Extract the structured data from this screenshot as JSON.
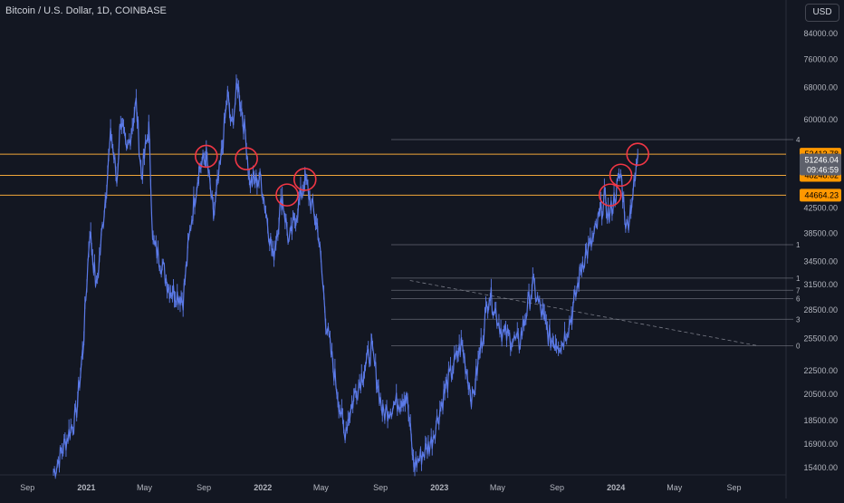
{
  "header": {
    "title": "Bitcoin / U.S. Dollar, 1D, COINBASE",
    "currency": "USD"
  },
  "colors": {
    "background": "#131722",
    "candle": "#5b7ae8",
    "hline": "#f0a63a",
    "circle": "#f23645",
    "grid": "#787b86",
    "label_orange": "#ff9800",
    "label_gray": "#5d606b",
    "axis_text": "#b2b5be"
  },
  "chart_data": {
    "type": "line",
    "title": "Bitcoin / U.S. Dollar, 1D, COINBASE",
    "xlabel": "",
    "ylabel": "",
    "scale": "log",
    "ylim": [
      15000,
      90000
    ],
    "xlim": [
      "2020-08-20",
      "2024-10-25"
    ],
    "x_ticks": [
      "Sep",
      "2021",
      "May",
      "Sep",
      "2022",
      "May",
      "Sep",
      "2023",
      "May",
      "Sep",
      "2024",
      "May",
      "Sep"
    ],
    "y_ticks": [
      "84000.00",
      "76000.00",
      "68000.00",
      "60000.00",
      "52413.78",
      "51246.04",
      "48248.62",
      "44664.23",
      "42500.00",
      "38500.00",
      "34500.00",
      "31500.00",
      "28500.00",
      "25500.00",
      "22500.00",
      "20500.00",
      "18500.00",
      "16900.00",
      "15400.00"
    ],
    "series": [
      {
        "type": "price",
        "points": [
          [
            "2020-10-25",
            15100
          ],
          [
            "2020-11-10",
            16300
          ],
          [
            "2020-11-28",
            17800
          ],
          [
            "2020-12-10",
            18700
          ],
          [
            "2020-12-25",
            24500
          ],
          [
            "2021-01-08",
            39000
          ],
          [
            "2021-01-22",
            31000
          ],
          [
            "2021-02-10",
            45000
          ],
          [
            "2021-02-21",
            57000
          ],
          [
            "2021-03-05",
            47000
          ],
          [
            "2021-03-13",
            61000
          ],
          [
            "2021-03-25",
            52000
          ],
          [
            "2021-04-14",
            64000
          ],
          [
            "2021-04-25",
            48000
          ],
          [
            "2021-05-10",
            58000
          ],
          [
            "2021-05-19",
            37000
          ],
          [
            "2021-06-01",
            35000
          ],
          [
            "2021-06-22",
            31000
          ],
          [
            "2021-07-20",
            29800
          ],
          [
            "2021-08-05",
            40000
          ],
          [
            "2021-08-22",
            49500
          ],
          [
            "2021-09-06",
            52000
          ],
          [
            "2021-09-21",
            41000
          ],
          [
            "2021-10-05",
            50000
          ],
          [
            "2021-10-20",
            66000
          ],
          [
            "2021-10-28",
            58000
          ],
          [
            "2021-11-10",
            68900
          ],
          [
            "2021-11-28",
            55000
          ],
          [
            "2021-12-04",
            47000
          ],
          [
            "2021-12-28",
            47500
          ],
          [
            "2022-01-22",
            35000
          ],
          [
            "2022-02-10",
            44500
          ],
          [
            "2022-02-24",
            37000
          ],
          [
            "2022-03-29",
            47500
          ],
          [
            "2022-04-25",
            39000
          ],
          [
            "2022-05-12",
            27000
          ],
          [
            "2022-06-18",
            17600
          ],
          [
            "2022-07-10",
            20500
          ],
          [
            "2022-08-14",
            24500
          ],
          [
            "2022-09-06",
            19000
          ],
          [
            "2022-10-25",
            20500
          ],
          [
            "2022-11-09",
            15500
          ],
          [
            "2022-12-15",
            17000
          ],
          [
            "2023-01-14",
            21000
          ],
          [
            "2023-02-16",
            25000
          ],
          [
            "2023-03-10",
            20000
          ],
          [
            "2023-04-14",
            30500
          ],
          [
            "2023-05-12",
            26000
          ],
          [
            "2023-06-15",
            25000
          ],
          [
            "2023-07-13",
            31500
          ],
          [
            "2023-08-17",
            25500
          ],
          [
            "2023-09-11",
            25000
          ],
          [
            "2023-10-02",
            28000
          ],
          [
            "2023-10-24",
            34500
          ],
          [
            "2023-11-15",
            37500
          ],
          [
            "2023-12-08",
            44000
          ],
          [
            "2023-12-18",
            41000
          ],
          [
            "2024-01-11",
            48500
          ],
          [
            "2024-01-23",
            39000
          ],
          [
            "2024-02-01",
            43000
          ],
          [
            "2024-02-10",
            47500
          ],
          [
            "2024-02-15",
            52413.78
          ]
        ]
      }
    ],
    "horizontal_levels": [
      {
        "value": 52413.78,
        "label": "52413.78",
        "style": "orange"
      },
      {
        "value": 48248.62,
        "label": "48248.62",
        "style": "orange"
      },
      {
        "value": 44664.23,
        "label": "44664.23",
        "style": "orange"
      }
    ],
    "current_price": {
      "value": 51246.04,
      "label": "51246.04",
      "countdown": "09:46:59"
    },
    "fib_levels": [
      {
        "label": "4",
        "value": 55500
      },
      {
        "label": "1",
        "value": 36800
      },
      {
        "label": "1",
        "value": 32300
      },
      {
        "label": "7",
        "value": 30800
      },
      {
        "label": "6",
        "value": 29800
      },
      {
        "label": "3",
        "value": 27500
      },
      {
        "label": "0",
        "value": 24800
      }
    ],
    "trendline": {
      "from": [
        "2022-11-01",
        32000
      ],
      "to": [
        "2024-10-20",
        24800
      ]
    },
    "circles": [
      {
        "x": "2021-09-06",
        "y": 52000
      },
      {
        "x": "2021-11-28",
        "y": 51500
      },
      {
        "x": "2022-02-20",
        "y": 44700
      },
      {
        "x": "2022-03-29",
        "y": 47500
      },
      {
        "x": "2023-12-20",
        "y": 44700
      },
      {
        "x": "2024-01-11",
        "y": 48300
      },
      {
        "x": "2024-02-15",
        "y": 52413.78
      }
    ]
  }
}
